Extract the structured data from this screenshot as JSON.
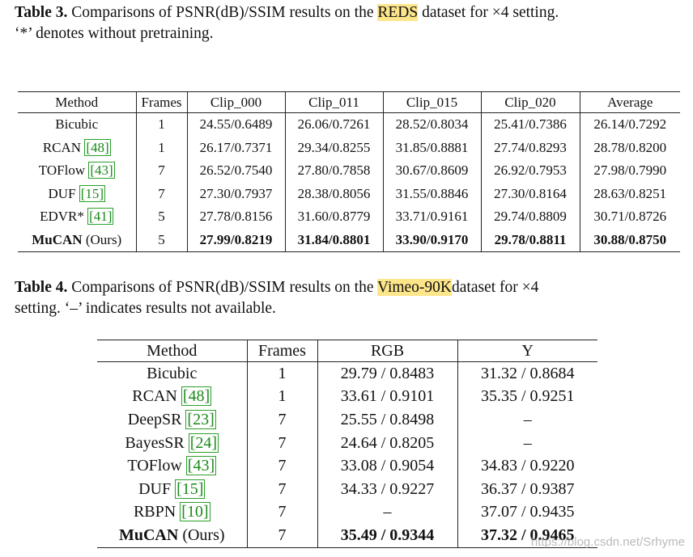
{
  "table3": {
    "caption": {
      "label": "Table 3.",
      "before": "Comparisons of PSNR(dB)/SSIM results on the",
      "highlight": "REDS",
      "after": "dataset for ×4 setting.",
      "line2": "‘*’ denotes without pretraining."
    },
    "header": [
      "Method",
      "Frames",
      "Clip_000",
      "Clip_011",
      "Clip_015",
      "Clip_020",
      "Average"
    ],
    "rows": [
      {
        "method": "Bicubic",
        "frames": "1",
        "values": [
          "24.55/0.6489",
          "26.06/0.7261",
          "28.52/0.8034",
          "25.41/0.7386",
          "26.14/0.7292"
        ]
      },
      {
        "method": "RCAN",
        "cite": "[48]",
        "frames": "1",
        "values": [
          "26.17/0.7371",
          "29.34/0.8255",
          "31.85/0.8881",
          "27.74/0.8293",
          "28.78/0.8200"
        ]
      },
      {
        "method": "TOFlow",
        "cite": "[43]",
        "frames": "7",
        "values": [
          "26.52/0.7540",
          "27.80/0.7858",
          "30.67/0.8609",
          "26.92/0.7953",
          "27.98/0.7990"
        ]
      },
      {
        "method": "DUF",
        "cite": "[15]",
        "frames": "7",
        "values": [
          "27.30/0.7937",
          "28.38/0.8056",
          "31.55/0.8846",
          "27.30/0.8164",
          "28.63/0.8251"
        ]
      },
      {
        "method": "EDVR*",
        "cite": "[41]",
        "frames": "5",
        "values": [
          "27.78/0.8156",
          "31.60/0.8779",
          "33.71/0.9161",
          "29.74/0.8809",
          "30.71/0.8726"
        ]
      },
      {
        "method": "MuCAN",
        "suffix": "(Ours)",
        "frames": "5",
        "values": [
          "27.99/0.8219",
          "31.84/0.8801",
          "33.90/0.9170",
          "29.78/0.8811",
          "30.88/0.8750"
        ]
      }
    ]
  },
  "table4": {
    "caption": {
      "label": "Table 4.",
      "before": "Comparisons of PSNR(dB)/SSIM results on the",
      "highlight": "Vimeo-90K",
      "after": "dataset for ×4",
      "line2": "setting. ‘–’ indicates results not available."
    },
    "header": [
      "Method",
      "Frames",
      "RGB",
      "Y"
    ],
    "rows": [
      {
        "method": "Bicubic",
        "frames": "1",
        "values": [
          "29.79 / 0.8483",
          "31.32 / 0.8684"
        ]
      },
      {
        "method": "RCAN",
        "cite": "[48]",
        "frames": "1",
        "values": [
          "33.61 / 0.9101",
          "35.35 / 0.9251"
        ]
      },
      {
        "method": "DeepSR",
        "cite": "[23]",
        "frames": "7",
        "values": [
          "25.55 / 0.8498",
          "–"
        ]
      },
      {
        "method": "BayesSR",
        "cite": "[24]",
        "frames": "7",
        "values": [
          "24.64 / 0.8205",
          "–"
        ]
      },
      {
        "method": "TOFlow",
        "cite": "[43]",
        "frames": "7",
        "values": [
          "33.08 / 0.9054",
          "34.83 / 0.9220"
        ]
      },
      {
        "method": "DUF",
        "cite": "[15]",
        "frames": "7",
        "values": [
          "34.33 / 0.9227",
          "36.37 / 0.9387"
        ]
      },
      {
        "method": "RBPN",
        "cite": "[10]",
        "frames": "7",
        "values": [
          "–",
          "37.07 / 0.9435"
        ]
      },
      {
        "method": "MuCAN",
        "suffix": "(Ours)",
        "frames": "7",
        "values": [
          "35.49 / 0.9344",
          "37.32 / 0.9465"
        ]
      }
    ]
  },
  "watermark": "https://blog.csdn.net/Srhyme"
}
